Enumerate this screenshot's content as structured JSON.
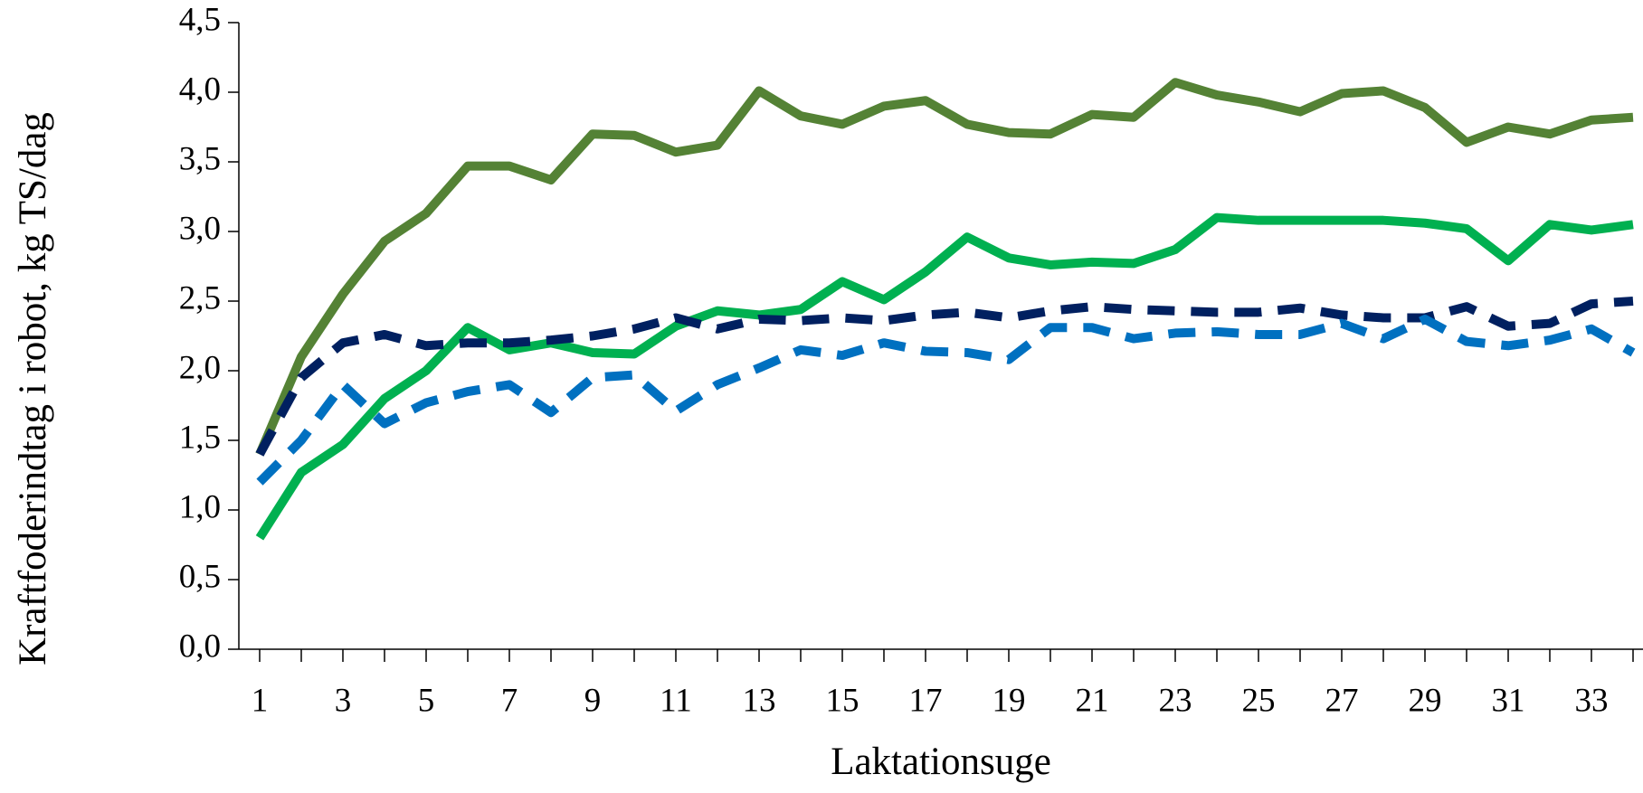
{
  "chart_data": {
    "type": "line",
    "y_label": "Kraftfoderindtag i robot, kg TS/dag",
    "x_label": "Laktationsuge",
    "categories": [
      1,
      null,
      3,
      null,
      5,
      null,
      7,
      null,
      9,
      null,
      11,
      null,
      13,
      null,
      15,
      null,
      17,
      null,
      19,
      null,
      21,
      null,
      23,
      null,
      25,
      null,
      27,
      null,
      29,
      null,
      31,
      null,
      33,
      null
    ],
    "ylim": [
      0,
      4.5
    ],
    "yticks": [
      {
        "value": 0,
        "label": "0,0"
      },
      {
        "value": 0.5,
        "label": "0,5"
      },
      {
        "value": 1,
        "label": "1,0"
      },
      {
        "value": 1.5,
        "label": "1,5"
      },
      {
        "value": 2,
        "label": "2,0"
      },
      {
        "value": 2.5,
        "label": "2,5"
      },
      {
        "value": 3,
        "label": "3,0"
      },
      {
        "value": 3.5,
        "label": "3,5"
      },
      {
        "value": 4,
        "label": "4,0"
      },
      {
        "value": 4.5,
        "label": "4,5"
      }
    ],
    "grid": false,
    "series": [
      {
        "color": "#548235",
        "dashed": false,
        "values": [
          1.4,
          2.1,
          2.55,
          2.93,
          3.13,
          3.47,
          3.47,
          3.37,
          3.7,
          3.69,
          3.57,
          3.62,
          4.01,
          3.83,
          3.77,
          3.9,
          3.94,
          3.77,
          3.71,
          3.7,
          3.84,
          3.82,
          4.07,
          3.98,
          3.93,
          3.86,
          3.99,
          4.01,
          3.89,
          3.64,
          3.75,
          3.7,
          3.8,
          3.82
        ]
      },
      {
        "color": "#00b050",
        "dashed": false,
        "values": [
          0.8,
          1.27,
          1.47,
          1.8,
          2.0,
          2.31,
          2.15,
          2.2,
          2.13,
          2.12,
          2.32,
          2.43,
          2.4,
          2.44,
          2.64,
          2.51,
          2.71,
          2.96,
          2.81,
          2.76,
          2.78,
          2.77,
          2.87,
          3.1,
          3.08,
          3.08,
          3.08,
          3.08,
          3.06,
          3.02,
          2.79,
          3.05,
          3.01,
          3.05
        ]
      },
      {
        "color": "#002060",
        "dashed": true,
        "values": [
          1.4,
          1.95,
          2.2,
          2.26,
          2.18,
          2.2,
          2.2,
          2.22,
          2.25,
          2.3,
          2.38,
          2.3,
          2.37,
          2.36,
          2.38,
          2.36,
          2.4,
          2.42,
          2.38,
          2.43,
          2.46,
          2.44,
          2.43,
          2.42,
          2.42,
          2.45,
          2.4,
          2.38,
          2.38,
          2.46,
          2.32,
          2.34,
          2.48,
          2.5
        ]
      },
      {
        "color": "#0070c0",
        "dashed": true,
        "values": [
          1.2,
          1.5,
          1.9,
          1.62,
          1.77,
          1.85,
          1.9,
          1.7,
          1.95,
          1.97,
          1.71,
          1.9,
          2.02,
          2.15,
          2.11,
          2.2,
          2.14,
          2.13,
          2.08,
          2.31,
          2.31,
          2.23,
          2.27,
          2.28,
          2.26,
          2.26,
          2.34,
          2.23,
          2.37,
          2.21,
          2.18,
          2.22,
          2.3,
          2.13
        ]
      }
    ]
  }
}
